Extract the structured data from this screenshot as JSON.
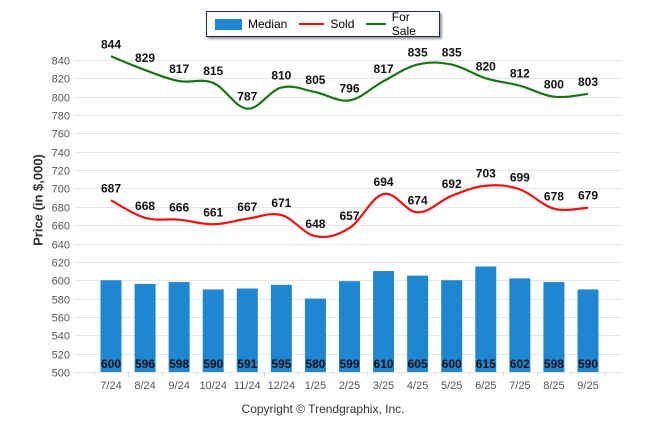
{
  "chart_data": {
    "type": "bar+line",
    "title": "",
    "xlabel": "",
    "ylabel": "Price (in $,000)",
    "ylim": [
      500,
      840
    ],
    "yticks": [
      500,
      520,
      540,
      560,
      580,
      600,
      620,
      640,
      660,
      680,
      700,
      720,
      740,
      760,
      780,
      800,
      820,
      840
    ],
    "grid": true,
    "legend_position": "top-center",
    "categories": [
      "7/24",
      "8/24",
      "9/24",
      "10/24",
      "11/24",
      "12/24",
      "1/25",
      "2/25",
      "3/25",
      "4/25",
      "5/25",
      "6/25",
      "7/25",
      "8/25",
      "9/25"
    ],
    "series": [
      {
        "name": "Median",
        "kind": "bar",
        "color": "#1f86d1",
        "values": [
          600,
          596,
          598,
          590,
          591,
          595,
          580,
          599,
          610,
          605,
          600,
          615,
          602,
          598,
          590
        ]
      },
      {
        "name": "Sold",
        "kind": "line",
        "color": "#ee1111",
        "values": [
          687,
          668,
          666,
          661,
          667,
          671,
          648,
          657,
          694,
          674,
          692,
          703,
          699,
          678,
          679
        ]
      },
      {
        "name": "For Sale",
        "kind": "line",
        "color": "#1a7417",
        "values": [
          844,
          829,
          817,
          815,
          787,
          810,
          805,
          796,
          817,
          835,
          835,
          820,
          812,
          800,
          803
        ]
      }
    ]
  },
  "legend": {
    "items": [
      {
        "label": "Median",
        "type": "bar",
        "color": "#1f86d1"
      },
      {
        "label": "Sold",
        "type": "line",
        "color": "#ee1111"
      },
      {
        "label": "For Sale",
        "type": "line",
        "color": "#1a7417"
      }
    ]
  },
  "footer": {
    "copyright": "Copyright © Trendgraphix, Inc."
  }
}
